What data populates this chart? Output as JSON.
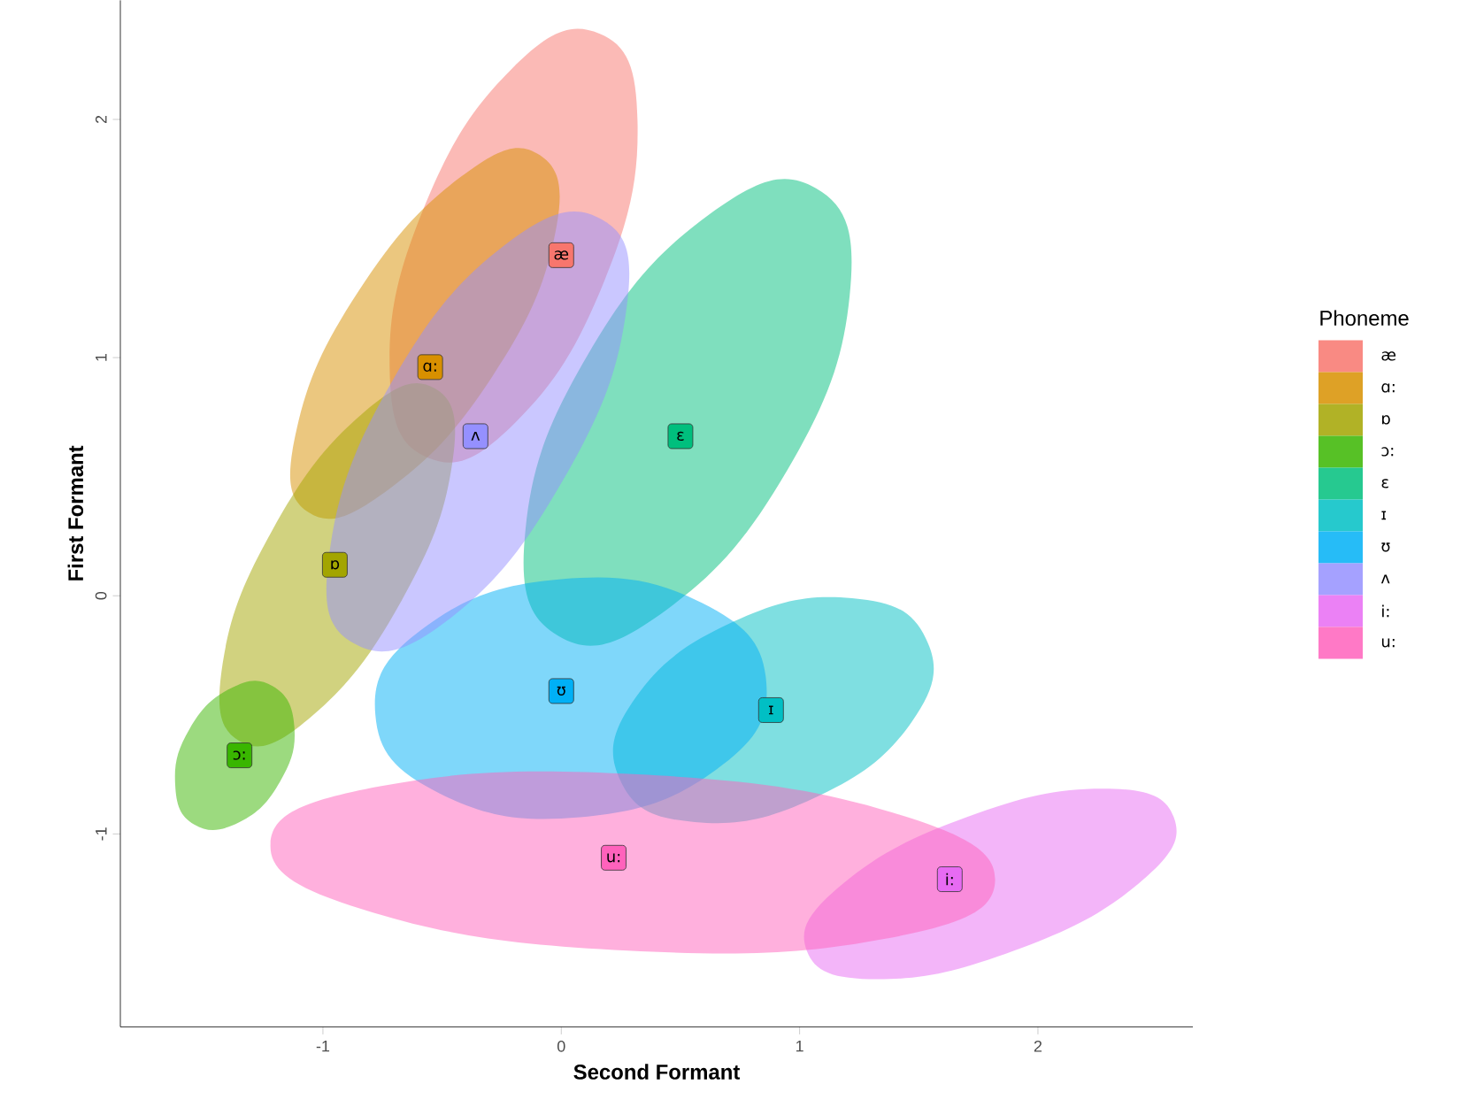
{
  "chart_data": {
    "type": "scatter",
    "xlabel": "Second Formant",
    "ylabel": "First Formant",
    "legend_title": "Phoneme",
    "legend": "right",
    "xlim": [
      -1.85,
      2.65
    ],
    "ylim": [
      -1.81,
      2.5
    ],
    "xticks": [
      -1,
      0,
      1,
      2
    ],
    "yticks": [
      -1,
      0,
      1,
      2
    ],
    "series": [
      {
        "type": "area",
        "color": "#f8766d",
        "x": [
          0.16,
          -0.21,
          -0.58,
          -0.72,
          -0.56,
          -0.19,
          0.18,
          0.32
        ],
        "values": [
          2.36,
          2.21,
          1.62,
          0.95,
          0.58,
          0.73,
          1.32,
          1.99
        ]
      },
      {
        "type": "area",
        "color": "#d89000",
        "x": [
          -0.09,
          -0.42,
          -0.85,
          -1.11,
          -1.06,
          -0.72,
          -0.29,
          -0.03
        ],
        "values": [
          1.85,
          1.76,
          1.28,
          0.7,
          0.35,
          0.45,
          0.92,
          1.5
        ]
      },
      {
        "type": "area",
        "color": "#a3a500",
        "x": [
          -0.53,
          -0.84,
          -1.21,
          -1.42,
          -1.35,
          -1.04,
          -0.67,
          -0.46
        ],
        "values": [
          0.87,
          0.76,
          0.28,
          -0.28,
          -0.61,
          -0.5,
          -0.02,
          0.54
        ]
      },
      {
        "type": "area",
        "color": "#39b600",
        "x": [
          -1.21,
          -1.39,
          -1.56,
          -1.62,
          -1.54,
          -1.35,
          -1.18,
          -1.12
        ],
        "values": [
          -0.38,
          -0.39,
          -0.56,
          -0.79,
          -0.96,
          -0.95,
          -0.78,
          -0.55
        ]
      },
      {
        "type": "area",
        "color": "#00bf7d",
        "x": [
          1.07,
          0.62,
          0.11,
          -0.15,
          -0.01,
          0.44,
          0.95,
          1.21
        ],
        "values": [
          1.71,
          1.6,
          1.01,
          0.28,
          -0.17,
          -0.06,
          0.53,
          1.26
        ]
      },
      {
        "type": "area",
        "color": "#00bfc4",
        "x": [
          1.53,
          1.22,
          0.72,
          0.31,
          0.25,
          0.56,
          1.06,
          1.47
        ],
        "values": [
          -0.18,
          -0.01,
          -0.11,
          -0.43,
          -0.78,
          -0.95,
          -0.85,
          -0.53
        ]
      },
      {
        "type": "area",
        "color": "#00b0f6",
        "x": [
          0.86,
          0.59,
          0.0,
          -0.57,
          -0.78,
          -0.51,
          0.08,
          0.65
        ],
        "values": [
          -0.36,
          -0.03,
          0.07,
          -0.13,
          -0.5,
          -0.83,
          -0.93,
          -0.73
        ]
      },
      {
        "type": "area",
        "color": "#9590ff",
        "x": [
          0.17,
          -0.24,
          -0.71,
          -0.97,
          -0.87,
          -0.46,
          0.01,
          0.27
        ],
        "values": [
          1.58,
          1.47,
          0.9,
          0.2,
          -0.2,
          -0.09,
          0.49,
          1.18
        ]
      },
      {
        "type": "area",
        "color": "#e76bf3",
        "x": [
          2.57,
          2.27,
          1.7,
          1.18,
          1.03,
          1.33,
          1.9,
          2.42
        ],
        "values": [
          -0.93,
          -0.81,
          -0.93,
          -1.21,
          -1.49,
          -1.61,
          -1.49,
          -1.21
        ]
      },
      {
        "type": "area",
        "color": "#ff62bc",
        "x": [
          1.82,
          1.39,
          0.32,
          -0.76,
          -1.22,
          -0.79,
          0.28,
          1.36
        ],
        "values": [
          -1.2,
          -0.91,
          -0.75,
          -0.8,
          -1.04,
          -1.33,
          -1.49,
          -1.44
        ]
      },
      {
        "name": "æ",
        "color": "#f8766d",
        "x": [
          0.0
        ],
        "values": [
          1.43
        ]
      },
      {
        "name": "ɑ:",
        "color": "#d89000",
        "x": [
          -0.55
        ],
        "values": [
          0.96
        ]
      },
      {
        "name": "ɒ",
        "color": "#a3a500",
        "x": [
          -0.95
        ],
        "values": [
          0.13
        ]
      },
      {
        "name": "ɔ:",
        "color": "#39b600",
        "x": [
          -1.35
        ],
        "values": [
          -0.67
        ]
      },
      {
        "name": "ɛ",
        "color": "#00bf7d",
        "x": [
          0.5
        ],
        "values": [
          0.67
        ]
      },
      {
        "name": "ɪ",
        "color": "#00bfc4",
        "x": [
          0.88
        ],
        "values": [
          -0.48
        ]
      },
      {
        "name": "ʊ",
        "color": "#00b0f6",
        "x": [
          0.0
        ],
        "values": [
          -0.4
        ]
      },
      {
        "name": "ʌ",
        "color": "#9590ff",
        "x": [
          -0.36
        ],
        "values": [
          0.67
        ]
      },
      {
        "name": "i:",
        "color": "#e76bf3",
        "x": [
          1.63
        ],
        "values": [
          -1.19
        ]
      },
      {
        "name": "u:",
        "color": "#ff62bc",
        "x": [
          0.22
        ],
        "values": [
          -1.1
        ]
      }
    ]
  }
}
